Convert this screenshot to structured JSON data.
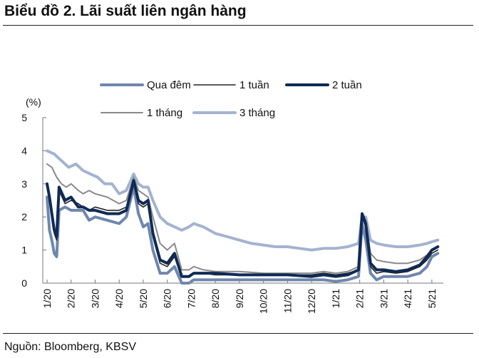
{
  "title": "Biểu đồ 2. Lãi suất liên ngân hàng",
  "source": "Nguồn: Bloomberg, KBSV",
  "chart_data": {
    "type": "line",
    "ylabel": "(%)",
    "ylim": [
      0,
      5
    ],
    "yticks": [
      "0",
      "1",
      "2",
      "3",
      "4",
      "5"
    ],
    "x_range": [
      "1/20",
      "5/21 (late May 2021)"
    ],
    "xticks": [
      "1/20",
      "2/20",
      "3/20",
      "4/20",
      "5/20",
      "6/20",
      "7/20",
      "8/20",
      "9/20",
      "10/20",
      "11/20",
      "12/20",
      "1/21",
      "2/21",
      "3/21",
      "4/21",
      "5/21"
    ],
    "legend_position": "top",
    "grid": false,
    "series": [
      {
        "name": "Qua đêm",
        "color": "#6f87ad",
        "width": 4,
        "points": [
          [
            0.0,
            2.6
          ],
          [
            0.1,
            1.6
          ],
          [
            0.2,
            1.3
          ],
          [
            0.3,
            0.9
          ],
          [
            0.4,
            0.8
          ],
          [
            0.5,
            2.2
          ],
          [
            0.75,
            2.3
          ],
          [
            1.0,
            2.2
          ],
          [
            1.3,
            2.2
          ],
          [
            1.5,
            2.2
          ],
          [
            1.75,
            1.9
          ],
          [
            2.0,
            2.0
          ],
          [
            2.5,
            1.9
          ],
          [
            3.0,
            1.8
          ],
          [
            3.3,
            2.0
          ],
          [
            3.6,
            2.9
          ],
          [
            3.8,
            2.1
          ],
          [
            4.0,
            1.7
          ],
          [
            4.2,
            1.8
          ],
          [
            4.4,
            1.0
          ],
          [
            4.7,
            0.3
          ],
          [
            5.0,
            0.3
          ],
          [
            5.3,
            0.5
          ],
          [
            5.6,
            0.0
          ],
          [
            5.9,
            0.0
          ],
          [
            6.1,
            0.1
          ],
          [
            6.5,
            0.1
          ],
          [
            7,
            0.1
          ],
          [
            8,
            0.1
          ],
          [
            9,
            0.1
          ],
          [
            10,
            0.1
          ],
          [
            11,
            0.1
          ],
          [
            11.5,
            0.1
          ],
          [
            12,
            0.05
          ],
          [
            12.5,
            0.1
          ],
          [
            12.95,
            0.2
          ],
          [
            13.1,
            1.8
          ],
          [
            13.25,
            1.3
          ],
          [
            13.45,
            0.3
          ],
          [
            13.7,
            0.1
          ],
          [
            14,
            0.2
          ],
          [
            14.5,
            0.2
          ],
          [
            15,
            0.2
          ],
          [
            15.5,
            0.3
          ],
          [
            15.8,
            0.5
          ],
          [
            16.0,
            0.8
          ],
          [
            16.25,
            0.9
          ]
        ]
      },
      {
        "name": "1 tuần",
        "color": "#222222",
        "width": 1.6,
        "points": [
          [
            0.0,
            2.9
          ],
          [
            0.1,
            2.5
          ],
          [
            0.2,
            2.0
          ],
          [
            0.3,
            1.5
          ],
          [
            0.4,
            1.3
          ],
          [
            0.5,
            2.8
          ],
          [
            0.75,
            2.4
          ],
          [
            1.0,
            2.5
          ],
          [
            1.3,
            2.4
          ],
          [
            1.5,
            2.3
          ],
          [
            1.75,
            2.2
          ],
          [
            2.0,
            2.3
          ],
          [
            2.5,
            2.2
          ],
          [
            3.0,
            2.2
          ],
          [
            3.3,
            2.3
          ],
          [
            3.6,
            3.0
          ],
          [
            3.8,
            2.4
          ],
          [
            4.0,
            2.3
          ],
          [
            4.2,
            2.4
          ],
          [
            4.4,
            1.4
          ],
          [
            4.7,
            0.6
          ],
          [
            5.0,
            0.5
          ],
          [
            5.3,
            0.8
          ],
          [
            5.6,
            0.2
          ],
          [
            5.9,
            0.2
          ],
          [
            6.1,
            0.3
          ],
          [
            6.5,
            0.3
          ],
          [
            7,
            0.25
          ],
          [
            8,
            0.25
          ],
          [
            9,
            0.25
          ],
          [
            10,
            0.25
          ],
          [
            11,
            0.25
          ],
          [
            11.5,
            0.3
          ],
          [
            12,
            0.25
          ],
          [
            12.5,
            0.3
          ],
          [
            12.95,
            0.4
          ],
          [
            13.1,
            2.0
          ],
          [
            13.25,
            1.7
          ],
          [
            13.45,
            0.5
          ],
          [
            13.7,
            0.3
          ],
          [
            14,
            0.35
          ],
          [
            14.5,
            0.3
          ],
          [
            15,
            0.35
          ],
          [
            15.5,
            0.5
          ],
          [
            15.8,
            0.7
          ],
          [
            16.0,
            0.9
          ],
          [
            16.25,
            1.0
          ]
        ]
      },
      {
        "name": "2 tuần",
        "color": "#0f2a55",
        "width": 4,
        "points": [
          [
            0.0,
            3.0
          ],
          [
            0.1,
            2.6
          ],
          [
            0.2,
            2.1
          ],
          [
            0.3,
            1.6
          ],
          [
            0.4,
            1.4
          ],
          [
            0.5,
            2.9
          ],
          [
            0.75,
            2.5
          ],
          [
            1.0,
            2.6
          ],
          [
            1.3,
            2.3
          ],
          [
            1.5,
            2.3
          ],
          [
            1.75,
            2.2
          ],
          [
            2.0,
            2.2
          ],
          [
            2.5,
            2.1
          ],
          [
            3.0,
            2.1
          ],
          [
            3.3,
            2.2
          ],
          [
            3.6,
            3.1
          ],
          [
            3.8,
            2.5
          ],
          [
            4.0,
            2.4
          ],
          [
            4.2,
            2.5
          ],
          [
            4.4,
            1.5
          ],
          [
            4.7,
            0.7
          ],
          [
            5.0,
            0.6
          ],
          [
            5.3,
            0.9
          ],
          [
            5.6,
            0.2
          ],
          [
            5.9,
            0.2
          ],
          [
            6.1,
            0.3
          ],
          [
            6.5,
            0.3
          ],
          [
            7,
            0.3
          ],
          [
            8,
            0.25
          ],
          [
            9,
            0.25
          ],
          [
            10,
            0.25
          ],
          [
            11,
            0.2
          ],
          [
            11.5,
            0.25
          ],
          [
            12,
            0.2
          ],
          [
            12.5,
            0.25
          ],
          [
            12.95,
            0.4
          ],
          [
            13.1,
            2.1
          ],
          [
            13.25,
            1.8
          ],
          [
            13.45,
            0.6
          ],
          [
            13.7,
            0.4
          ],
          [
            14,
            0.4
          ],
          [
            14.5,
            0.35
          ],
          [
            15,
            0.4
          ],
          [
            15.5,
            0.55
          ],
          [
            15.8,
            0.8
          ],
          [
            16.0,
            1.0
          ],
          [
            16.25,
            1.1
          ]
        ]
      },
      {
        "name": "1 tháng",
        "color": "#8a8a8a",
        "width": 2,
        "points": [
          [
            0.0,
            3.6
          ],
          [
            0.2,
            3.5
          ],
          [
            0.4,
            3.2
          ],
          [
            0.6,
            3.0
          ],
          [
            0.8,
            2.9
          ],
          [
            1.0,
            3.0
          ],
          [
            1.3,
            2.8
          ],
          [
            1.5,
            2.7
          ],
          [
            1.75,
            2.8
          ],
          [
            2.0,
            2.7
          ],
          [
            2.5,
            2.6
          ],
          [
            3.0,
            2.4
          ],
          [
            3.3,
            2.5
          ],
          [
            3.6,
            3.2
          ],
          [
            3.8,
            2.8
          ],
          [
            4.0,
            2.7
          ],
          [
            4.2,
            2.6
          ],
          [
            4.4,
            2.0
          ],
          [
            4.7,
            1.2
          ],
          [
            5.0,
            1.0
          ],
          [
            5.3,
            1.2
          ],
          [
            5.6,
            0.4
          ],
          [
            5.9,
            0.4
          ],
          [
            6.1,
            0.5
          ],
          [
            6.5,
            0.4
          ],
          [
            7,
            0.35
          ],
          [
            8,
            0.35
          ],
          [
            9,
            0.3
          ],
          [
            10,
            0.3
          ],
          [
            11,
            0.3
          ],
          [
            11.5,
            0.35
          ],
          [
            12,
            0.3
          ],
          [
            12.5,
            0.35
          ],
          [
            12.95,
            0.5
          ],
          [
            13.1,
            2.0
          ],
          [
            13.25,
            1.9
          ],
          [
            13.45,
            0.9
          ],
          [
            13.7,
            0.7
          ],
          [
            14,
            0.65
          ],
          [
            14.5,
            0.6
          ],
          [
            15,
            0.6
          ],
          [
            15.5,
            0.7
          ],
          [
            15.8,
            0.85
          ],
          [
            16.0,
            1.0
          ],
          [
            16.25,
            1.1
          ]
        ]
      },
      {
        "name": "3 tháng",
        "color": "#a3b3d0",
        "width": 4,
        "points": [
          [
            0.0,
            4.0
          ],
          [
            0.3,
            3.9
          ],
          [
            0.6,
            3.7
          ],
          [
            0.9,
            3.5
          ],
          [
            1.2,
            3.6
          ],
          [
            1.5,
            3.4
          ],
          [
            1.8,
            3.3
          ],
          [
            2.1,
            3.2
          ],
          [
            2.4,
            3.0
          ],
          [
            2.7,
            3.0
          ],
          [
            3.0,
            2.7
          ],
          [
            3.3,
            2.8
          ],
          [
            3.6,
            3.3
          ],
          [
            3.8,
            3.0
          ],
          [
            4.0,
            2.9
          ],
          [
            4.2,
            2.9
          ],
          [
            4.4,
            2.5
          ],
          [
            4.7,
            2.0
          ],
          [
            5.0,
            1.8
          ],
          [
            5.3,
            1.7
          ],
          [
            5.6,
            1.6
          ],
          [
            5.9,
            1.7
          ],
          [
            6.1,
            1.8
          ],
          [
            6.5,
            1.7
          ],
          [
            7,
            1.5
          ],
          [
            7.5,
            1.4
          ],
          [
            8,
            1.3
          ],
          [
            8.5,
            1.2
          ],
          [
            9,
            1.15
          ],
          [
            9.5,
            1.1
          ],
          [
            10,
            1.1
          ],
          [
            10.5,
            1.05
          ],
          [
            11,
            1.0
          ],
          [
            11.5,
            1.05
          ],
          [
            12,
            1.05
          ],
          [
            12.5,
            1.1
          ],
          [
            12.95,
            1.2
          ],
          [
            13.1,
            2.0
          ],
          [
            13.25,
            2.0
          ],
          [
            13.45,
            1.3
          ],
          [
            13.7,
            1.2
          ],
          [
            14,
            1.15
          ],
          [
            14.5,
            1.1
          ],
          [
            15,
            1.1
          ],
          [
            15.5,
            1.15
          ],
          [
            15.8,
            1.2
          ],
          [
            16.0,
            1.25
          ],
          [
            16.25,
            1.3
          ]
        ]
      }
    ]
  }
}
